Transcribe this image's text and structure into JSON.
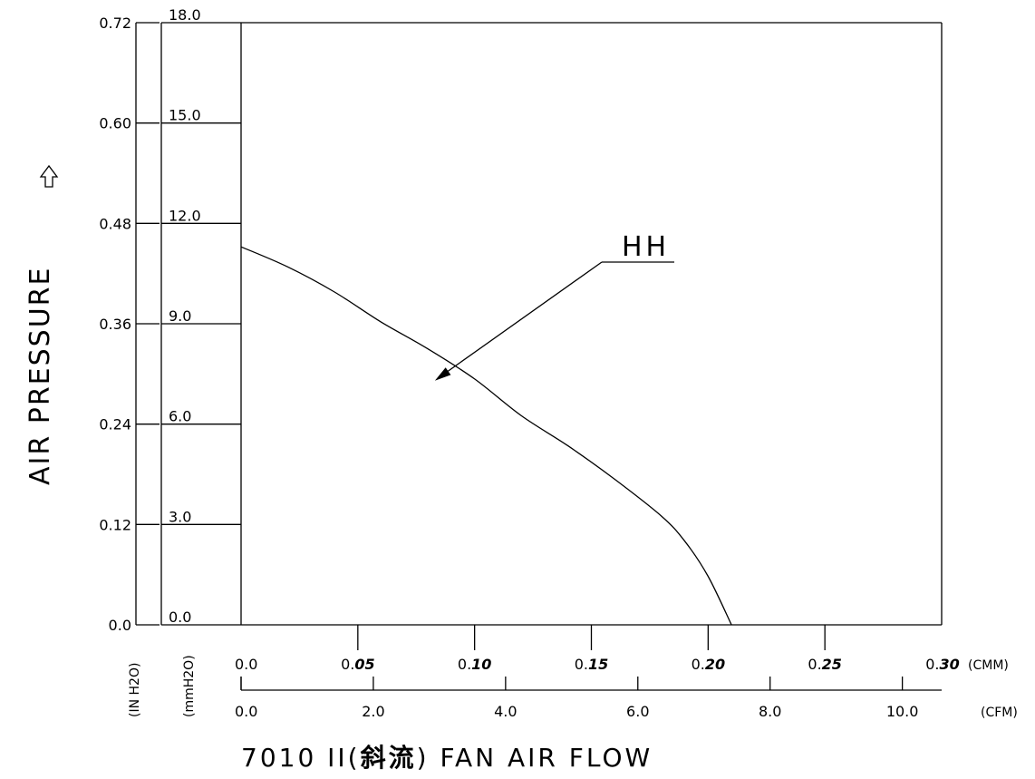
{
  "chart_data": {
    "type": "line",
    "title": "7010 II(斜流) FAN AIR FLOW",
    "ylabel": "AIR PRESSURE",
    "y_unit_inh2o": "(IN H2O)",
    "y_unit_mmh2o": "(mmH2O)",
    "x_unit_cmm": "(CMM)",
    "x_unit_cfm": "(CFM)",
    "xlim_cmm": [
      0,
      0.3
    ],
    "ylim_mmh2o": [
      0,
      18
    ],
    "x_ticks_cmm": [
      0,
      0.05,
      0.1,
      0.15,
      0.2,
      0.25,
      0.3
    ],
    "x_tick_labels_cmm": [
      {
        "normal": "0.0",
        "bold": ""
      },
      {
        "normal": "0.",
        "bold": "05"
      },
      {
        "normal": "0.",
        "bold": "10"
      },
      {
        "normal": "0.",
        "bold": "15"
      },
      {
        "normal": "0.",
        "bold": "20"
      },
      {
        "normal": "0.",
        "bold": "25"
      },
      {
        "normal": "0.",
        "bold": "30"
      }
    ],
    "x_ticks_cfm": [
      0,
      2,
      4,
      6,
      8,
      10
    ],
    "x_tick_labels_cfm": [
      "0.0",
      "2.0",
      "4.0",
      "6.0",
      "8.0",
      "10.0"
    ],
    "y_ticks_mmh2o": [
      0,
      3,
      6,
      9,
      12,
      15,
      18
    ],
    "y_tick_labels_mmh2o": [
      "0.0",
      "3.0",
      "6.0",
      "9.0",
      "12.0",
      "15.0",
      "18.0"
    ],
    "y_tick_labels_inh2o": [
      "0.0",
      "0.12",
      "0.24",
      "0.36",
      "0.48",
      "0.60",
      "0.72"
    ],
    "series": [
      {
        "name": "HH",
        "x": [
          0,
          0.02,
          0.04,
          0.06,
          0.08,
          0.1,
          0.12,
          0.14,
          0.16,
          0.18,
          0.19,
          0.2,
          0.21
        ],
        "y": [
          11.3,
          10.7,
          9.95,
          9.05,
          8.25,
          7.35,
          6.25,
          5.35,
          4.35,
          3.25,
          2.5,
          1.45,
          0
        ]
      }
    ],
    "annotation": {
      "text": "HH",
      "target_x": 0.083,
      "target_y": 7.3
    },
    "grid": false
  }
}
